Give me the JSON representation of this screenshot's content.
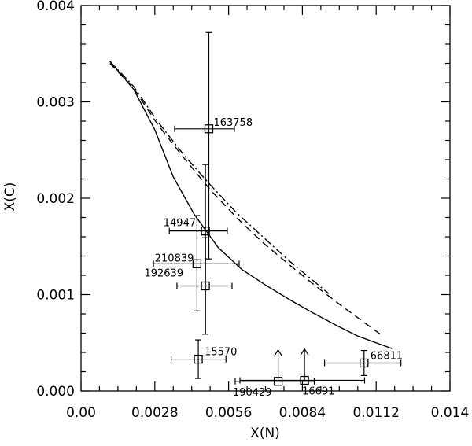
{
  "chart_data": {
    "type": "scatter",
    "xlabel": "X(N)",
    "ylabel": "X(C)",
    "xlim": [
      0.0,
      0.014
    ],
    "ylim": [
      0.0,
      0.004
    ],
    "x_ticks": [
      "0.00",
      "0.0028",
      "0.0056",
      "0.0084",
      "0.0112",
      "0.014"
    ],
    "y_ticks": [
      "0.000",
      "0.001",
      "0.002",
      "0.003",
      "0.004"
    ],
    "grid": false,
    "points": [
      {
        "label": "163758",
        "x": 0.00485,
        "y": 0.00272,
        "xerr_low": 0.0013,
        "xerr_high": 0.00097,
        "yerr_low": 0.00135,
        "yerr_high": 0.001,
        "lower_limit": false
      },
      {
        "label": "14947",
        "x": 0.00472,
        "y": 0.00166,
        "xerr_low": 0.00137,
        "xerr_high": 0.00083,
        "yerr_low": 0.00107,
        "yerr_high": 0.00069,
        "lower_limit": false
      },
      {
        "label": "210839",
        "x": 0.0044,
        "y": 0.00132,
        "xerr_low": 0.00165,
        "xerr_high": 0.0016,
        "yerr_low": 0.00049,
        "yerr_high": 0.0005,
        "lower_limit": false
      },
      {
        "label": "192639",
        "x": 0.00472,
        "y": 0.00109,
        "xerr_low": 0.00108,
        "xerr_high": 0.00101,
        "yerr_low": 0.0005,
        "yerr_high": 0.0005,
        "lower_limit": false
      },
      {
        "label": "15570",
        "x": 0.00445,
        "y": 0.00033,
        "xerr_low": 0.00103,
        "xerr_high": 0.00105,
        "yerr_low": 0.0002,
        "yerr_high": 0.0002,
        "lower_limit": false
      },
      {
        "label": "190429",
        "x": 0.00748,
        "y": 0.0001,
        "xerr_low": 0.00163,
        "xerr_high": 0.00137,
        "yerr_low": 0.0,
        "yerr_high": 0.0,
        "lower_limit": true
      },
      {
        "label": "16691",
        "x": 0.00848,
        "y": 0.00011,
        "xerr_low": 0.00245,
        "xerr_high": 0.00228,
        "yerr_low": 0.0,
        "yerr_high": 0.0,
        "lower_limit": true
      },
      {
        "label": "66811",
        "x": 0.01074,
        "y": 0.00029,
        "xerr_low": 0.0015,
        "xerr_high": 0.0014,
        "yerr_low": 0.00013,
        "yerr_high": 0.00013,
        "lower_limit": false
      }
    ],
    "curves": [
      {
        "style": "solid",
        "x": [
          0.0011,
          0.002,
          0.0028,
          0.0035,
          0.0043,
          0.0052,
          0.0061,
          0.007,
          0.0079,
          0.0088,
          0.0097,
          0.0105,
          0.0113,
          0.0118
        ],
        "y": [
          0.00342,
          0.00313,
          0.00271,
          0.00222,
          0.00183,
          0.00149,
          0.00126,
          0.0011,
          0.00095,
          0.00081,
          0.00068,
          0.00057,
          0.00049,
          0.00044
        ]
      },
      {
        "style": "dashed",
        "x": [
          0.0011,
          0.002,
          0.0029,
          0.0039,
          0.0049,
          0.0059,
          0.0069,
          0.0079,
          0.0089,
          0.0099,
          0.0109,
          0.0114
        ],
        "y": [
          0.0034,
          0.00314,
          0.00277,
          0.00242,
          0.00209,
          0.0018,
          0.00154,
          0.00131,
          0.00109,
          0.00088,
          0.00068,
          0.00058
        ]
      },
      {
        "style": "dashdot",
        "x": [
          0.0011,
          0.002,
          0.0029,
          0.0039,
          0.0049,
          0.0059,
          0.0069,
          0.0079,
          0.0087,
          0.0094
        ],
        "y": [
          0.00342,
          0.00316,
          0.0028,
          0.00245,
          0.00214,
          0.00185,
          0.0016,
          0.00135,
          0.00117,
          0.00101
        ]
      }
    ]
  }
}
